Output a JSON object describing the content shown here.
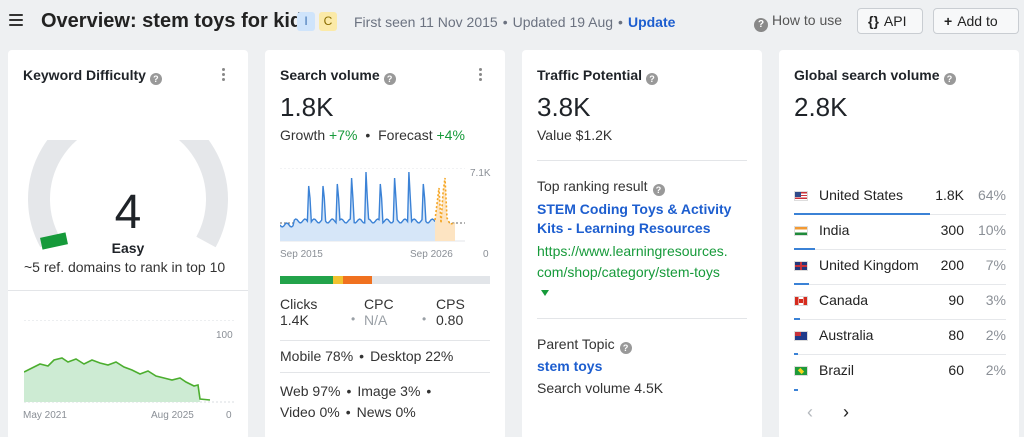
{
  "header": {
    "title": "Overview: stem toys for kids",
    "badge_i": "I",
    "badge_c": "C",
    "first_seen": "First seen 11 Nov 2015",
    "sep": "•",
    "updated": "Updated 19 Aug",
    "update_link": "Update",
    "how_to_use": "How to use",
    "api_icon": "{}",
    "api_label": "API",
    "add_icon": "+",
    "add_label": "Add to"
  },
  "kd": {
    "title": "Keyword Difficulty",
    "value": "4",
    "level": "Easy",
    "ref_text": "~5 ref. domains to rank in top 10",
    "chart_top": "100",
    "chart_bottom": "0",
    "chart_start": "May 2021",
    "chart_end": "Aug 2025"
  },
  "sv": {
    "title": "Search volume",
    "value": "1.8K",
    "growth_label": "Growth",
    "growth_value": "+7%",
    "forecast_label": "Forecast",
    "forecast_value": "+4%",
    "chart_max": "7.1K",
    "chart_min": "0",
    "chart_start": "Sep 2015",
    "chart_end": "Sep 2026",
    "clicks_label": "Clicks",
    "clicks_value": "1.4K",
    "cpc_label": "CPC",
    "cpc_value": "N/A",
    "cps_label": "CPS",
    "cps_value": "0.80",
    "mobile": "Mobile 78%",
    "desktop": "Desktop 22%",
    "web": "Web 97%",
    "image": "Image 3%",
    "video": "Video 0%",
    "news": "News 0%"
  },
  "tp": {
    "title": "Traffic Potential",
    "value": "3.8K",
    "value_sub": "Value $1.2K",
    "top_result_label": "Top ranking result",
    "top_result_title_1": "STEM Coding Toys & Activity",
    "top_result_title_2": "Kits - Learning Resources",
    "top_result_url_1": "https://www.learningresources.",
    "top_result_url_2": "com/shop/category/stem-toys",
    "parent_label": "Parent Topic",
    "parent_value": "stem toys",
    "parent_sv": "Search volume 4.5K"
  },
  "gsv": {
    "title": "Global search volume",
    "value": "2.8K",
    "countries": [
      {
        "name": "United States",
        "value": "1.8K",
        "pct": "64%",
        "share": 64
      },
      {
        "name": "India",
        "value": "300",
        "pct": "10%",
        "share": 10
      },
      {
        "name": "United Kingdom",
        "value": "200",
        "pct": "7%",
        "share": 7
      },
      {
        "name": "Canada",
        "value": "90",
        "pct": "3%",
        "share": 3
      },
      {
        "name": "Australia",
        "value": "80",
        "pct": "2%",
        "share": 2
      },
      {
        "name": "Brazil",
        "value": "60",
        "pct": "2%",
        "share": 2
      }
    ],
    "prev": "‹",
    "next": "›"
  },
  "colors": {
    "accent": "#1d5ecf",
    "positive": "#169a3a",
    "kd_easy": "#169a3a",
    "sv_line": "#3b82d6",
    "forecast": "#f5a623"
  },
  "clicks_split": [
    {
      "label": "organic",
      "share": 0.25,
      "color": "#22a34a"
    },
    {
      "label": "paid-ish",
      "share": 0.05,
      "color": "#f2c230"
    },
    {
      "label": "paid",
      "share": 0.14,
      "color": "#f0711f"
    },
    {
      "label": "no clicks",
      "share": 0.56,
      "color": "#e2e5e9"
    }
  ]
}
